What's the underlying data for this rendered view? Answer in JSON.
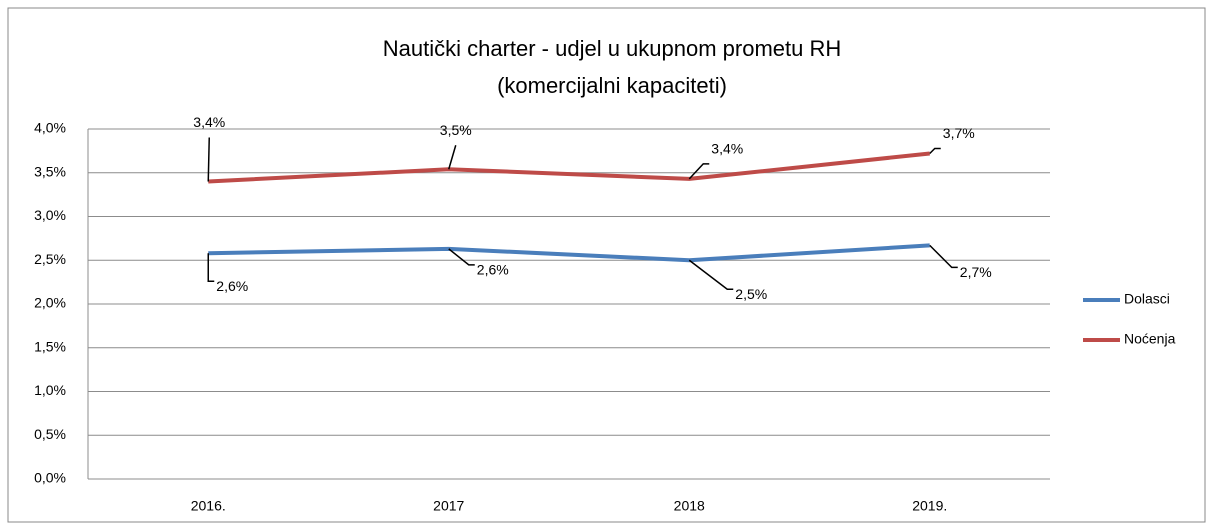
{
  "chart_data": {
    "type": "line",
    "title": [
      "Nautički charter - udjel u ukupnom prometu RH",
      "(komercijalni kapaciteti)"
    ],
    "categories": [
      "2016.",
      "2017",
      "2018",
      "2019."
    ],
    "series": [
      {
        "name": "Dolasci",
        "color": "#4a7ebb",
        "values": [
          2.58,
          2.63,
          2.5,
          2.67
        ],
        "value_labels": [
          "2,6%",
          "2,6%",
          "2,5%",
          "2,7%"
        ]
      },
      {
        "name": "Noćenja",
        "color": "#be4b48",
        "values": [
          3.4,
          3.54,
          3.43,
          3.72
        ],
        "value_labels": [
          "3,4%",
          "3,5%",
          "3,4%",
          "3,7%"
        ]
      }
    ],
    "ylim": [
      0,
      4
    ],
    "yticks": [
      {
        "value": 0,
        "label": "0,0%"
      },
      {
        "value": 0.5,
        "label": "0,5%"
      },
      {
        "value": 1,
        "label": "1,0%"
      },
      {
        "value": 1.5,
        "label": "1,5%"
      },
      {
        "value": 2,
        "label": "2,0%"
      },
      {
        "value": 2.5,
        "label": "2,5%"
      },
      {
        "value": 3,
        "label": "3,0%"
      },
      {
        "value": 3.5,
        "label": "3,5%"
      },
      {
        "value": 4,
        "label": "4,0%"
      }
    ],
    "grid": true,
    "legend": "right"
  }
}
